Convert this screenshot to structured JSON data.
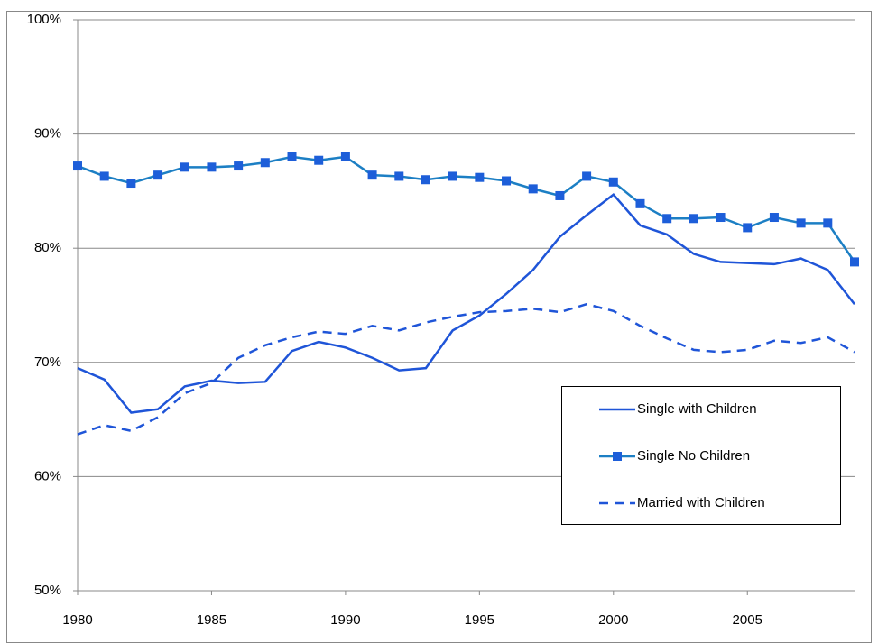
{
  "chart_data": {
    "type": "line",
    "x": [
      1980,
      1981,
      1982,
      1983,
      1984,
      1985,
      1986,
      1987,
      1988,
      1989,
      1990,
      1991,
      1992,
      1993,
      1994,
      1995,
      1996,
      1997,
      1998,
      1999,
      2000,
      2001,
      2002,
      2003,
      2004,
      2005,
      2006,
      2007,
      2008,
      2009
    ],
    "series": [
      {
        "name": "Single with Children",
        "color": "#1f55d8",
        "dash": false,
        "marker": null,
        "values": [
          69.5,
          68.5,
          65.6,
          65.9,
          67.9,
          68.4,
          68.2,
          68.3,
          71.0,
          71.8,
          71.3,
          70.4,
          69.3,
          69.5,
          72.8,
          74.1,
          76.0,
          78.1,
          81.0,
          82.9,
          84.7,
          82.0,
          81.2,
          79.5,
          78.8,
          78.7,
          78.6,
          79.1,
          78.1,
          75.1
        ]
      },
      {
        "name": "Single No Children",
        "color": "#1c7fc4",
        "dash": false,
        "marker": "square",
        "marker_color": "#1d5ed9",
        "values": [
          87.2,
          86.3,
          85.7,
          86.4,
          87.1,
          87.1,
          87.2,
          87.5,
          88.0,
          87.7,
          88.0,
          86.4,
          86.3,
          86.0,
          86.3,
          86.2,
          85.9,
          85.2,
          84.6,
          86.3,
          85.8,
          83.9,
          82.6,
          82.6,
          82.7,
          81.8,
          82.7,
          82.2,
          82.2,
          78.8
        ]
      },
      {
        "name": "Married with Children",
        "color": "#1f55d8",
        "dash": true,
        "marker": null,
        "values": [
          63.7,
          64.5,
          64.0,
          65.2,
          67.3,
          68.2,
          70.4,
          71.5,
          72.2,
          72.7,
          72.5,
          73.2,
          72.8,
          73.5,
          74.0,
          74.4,
          74.5,
          74.7,
          74.4,
          75.1,
          74.5,
          73.2,
          72.1,
          71.1,
          70.9,
          71.1,
          71.9,
          71.7,
          72.2,
          70.9
        ]
      }
    ],
    "xlim": [
      1980,
      2009
    ],
    "xticks": [
      1980,
      1985,
      1990,
      1995,
      2000,
      2005
    ],
    "ylim": [
      50,
      100
    ],
    "yticks": [
      {
        "value": 50,
        "label": "50%"
      },
      {
        "value": 60,
        "label": "60%"
      },
      {
        "value": 70,
        "label": "70%"
      },
      {
        "value": 80,
        "label": "80%"
      },
      {
        "value": 90,
        "label": "90%"
      },
      {
        "value": 100,
        "label": "100%"
      }
    ],
    "grid": true,
    "legend": "lower right"
  }
}
